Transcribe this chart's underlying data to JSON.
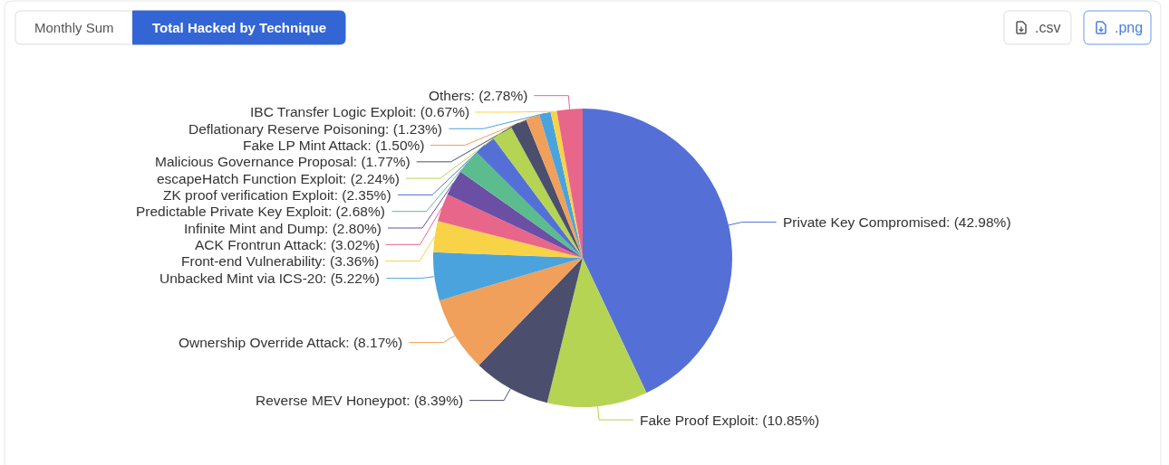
{
  "chart_data": {
    "type": "pie",
    "title": "Total Hacked by Technique",
    "annotations": [
      "Monthly Sum",
      ".csv",
      ".png"
    ],
    "categories": [
      "Private Key Compromised",
      "Fake Proof Exploit",
      "Reverse MEV Honeypot",
      "Ownership Override Attack",
      "Unbacked Mint via ICS-20",
      "Front-end Vulnerability",
      "ACK Frontrun Attack",
      "Infinite Mint and Dump",
      "Predictable Private Key Exploit",
      "ZK proof verification Exploit",
      "escapeHatch Function Exploit",
      "Malicious Governance Proposal",
      "Fake LP Mint Attack",
      "Deflationary Reserve Poisoning",
      "IBC Transfer Logic Exploit",
      "Others"
    ],
    "values": [
      42.98,
      10.85,
      8.39,
      8.17,
      5.22,
      3.36,
      3.02,
      2.8,
      2.68,
      2.35,
      2.24,
      1.77,
      1.5,
      1.23,
      0.67,
      2.78
    ],
    "value_labels": [
      "(42.98%)",
      "(10.85%)",
      "(8.39%)",
      "(8.17%)",
      "(5.22%)",
      "(3.36%)",
      "(3.02%)",
      "(2.80%)",
      "(2.68%)",
      "(2.35%)",
      "(2.24%)",
      "(1.77%)",
      "(1.50%)",
      "(1.23%)",
      "(0.67%)",
      "(2.78%)"
    ],
    "colors": [
      "#5470d6",
      "#b5d453",
      "#4b4e6d",
      "#f0a05a",
      "#4aa3dd",
      "#f8d347",
      "#e8668a",
      "#6b4fa5",
      "#5bbd8e",
      "#5470d6",
      "#b5d453",
      "#4b4e6d",
      "#f0a05a",
      "#4aa3dd",
      "#f8d347",
      "#e8668a"
    ],
    "legend": false
  }
}
